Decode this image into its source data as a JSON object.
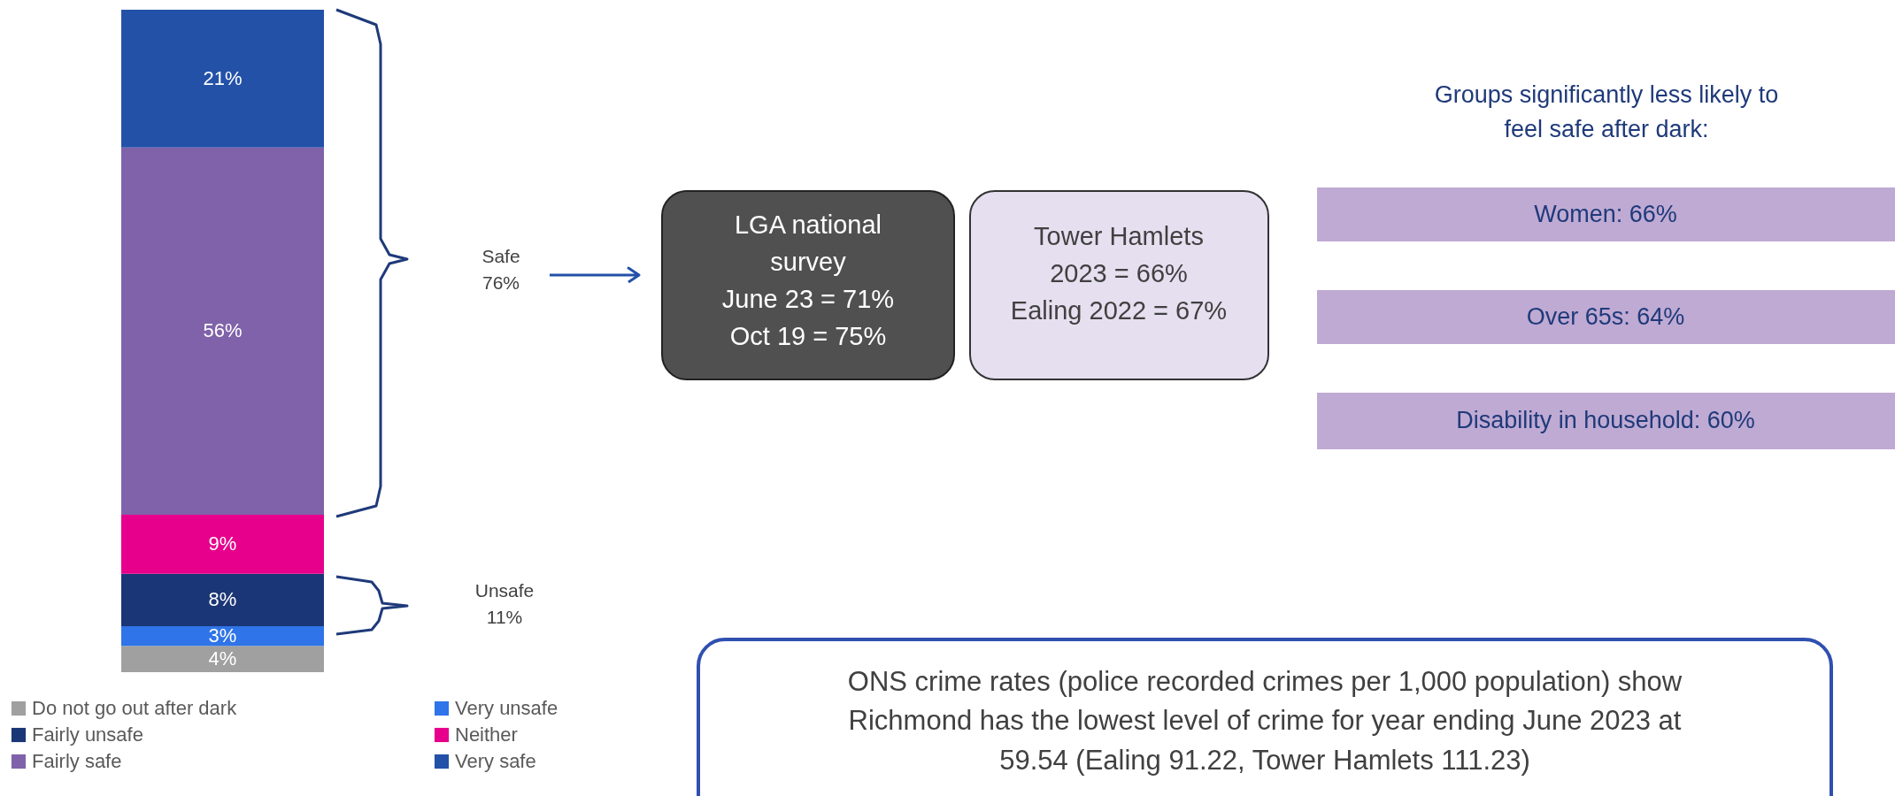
{
  "chart_data": {
    "type": "bar",
    "stacked": true,
    "categories": [
      null
    ],
    "series": [
      {
        "name": "Do not go out after dark",
        "color": "#a0a0a0",
        "values": [
          4
        ],
        "value_labels": [
          "4%"
        ]
      },
      {
        "name": "Very unsafe",
        "color": "#2f74e8",
        "values": [
          3
        ],
        "value_labels": [
          "3%"
        ]
      },
      {
        "name": "Fairly unsafe",
        "color": "#1b3676",
        "values": [
          8
        ],
        "value_labels": [
          "8%"
        ]
      },
      {
        "name": "Neither",
        "color": "#e6008c",
        "values": [
          9
        ],
        "value_labels": [
          "9%"
        ]
      },
      {
        "name": "Fairly safe",
        "color": "#8062aa",
        "values": [
          56
        ],
        "value_labels": [
          "56%"
        ]
      },
      {
        "name": "Very safe",
        "color": "#2351a8",
        "values": [
          21
        ],
        "value_labels": [
          "21%"
        ]
      }
    ],
    "legend": "bottom",
    "annotations": [
      "Safe\n76%",
      "Unsafe\n11%",
      "LGA national\nsurvey\nJune 23 = 71%\nOct 19 = 75%",
      "Tower Hamlets\n2023 = 66%\nEaling 2022 = 67%",
      "Groups significantly less likely to\nfeel safe after dark:",
      "Women: 66%",
      "Over 65s: 64%",
      "Disability in household: 60%",
      "ONS crime rates (police recorded crimes per 1,000 population) show\nRichmond has the lowest level of crime for year ending June 2023 at\n59.54 (Ealing 91.22, Tower Hamlets 111.23)"
    ]
  }
}
